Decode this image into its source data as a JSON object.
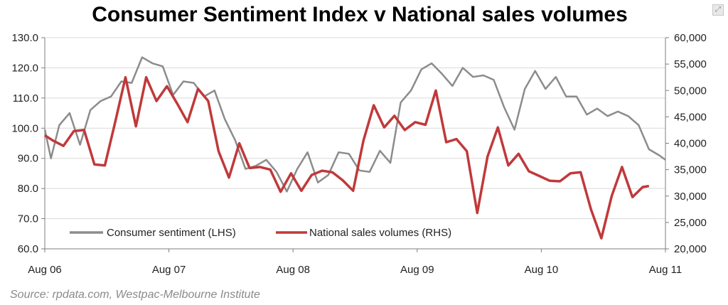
{
  "colors": {
    "sentiment": "#8c8c8c",
    "sales": "#c0393b",
    "axis": "#7f7f7f",
    "grid": "#d9d9d9",
    "source": "#8a8a8a"
  },
  "chart_data": {
    "type": "line",
    "title": "Consumer Sentiment Index v National sales volumes",
    "source": "Source:  rpdata.com, Westpac-Melbourne Institute",
    "x_range": [
      2006.583,
      2011.583
    ],
    "x_ticks": [
      {
        "label": "Aug 06",
        "t": 2006.583
      },
      {
        "label": "Aug 07",
        "t": 2007.583
      },
      {
        "label": "Aug 08",
        "t": 2008.583
      },
      {
        "label": "Aug 09",
        "t": 2009.583
      },
      {
        "label": "Aug 10",
        "t": 2010.583
      },
      {
        "label": "Aug 11",
        "t": 2011.583
      }
    ],
    "y_left": {
      "min": 60,
      "max": 130,
      "step": 10,
      "labels": [
        "60.0",
        "70.0",
        "80.0",
        "90.0",
        "100.0",
        "110.0",
        "120.0",
        "130.0"
      ]
    },
    "y_right": {
      "min": 20000,
      "max": 60000,
      "step": 5000,
      "labels": [
        "20,000",
        "25,000",
        "30,000",
        "35,000",
        "40,000",
        "45,000",
        "50,000",
        "55,000",
        "60,000"
      ]
    },
    "series": [
      {
        "name": "Consumer sentiment (LHS)",
        "axis": "left",
        "color": "#8c8c8c",
        "t": [
          2006.583,
          2006.633,
          2006.7,
          2006.783,
          2006.867,
          2006.95,
          2007.033,
          2007.117,
          2007.2,
          2007.283,
          2007.367,
          2007.45,
          2007.533,
          2007.617,
          2007.7,
          2007.783,
          2007.867,
          2007.95,
          2008.033,
          2008.117,
          2008.2,
          2008.283,
          2008.367,
          2008.45,
          2008.533,
          2008.617,
          2008.7,
          2008.783,
          2008.867,
          2008.95,
          2009.033,
          2009.117,
          2009.2,
          2009.283,
          2009.367,
          2009.45,
          2009.533,
          2009.617,
          2009.7,
          2009.783,
          2009.867,
          2009.95,
          2010.033,
          2010.117,
          2010.2,
          2010.283,
          2010.367,
          2010.45,
          2010.533,
          2010.617,
          2010.7,
          2010.783,
          2010.867,
          2010.95,
          2011.033,
          2011.117,
          2011.2,
          2011.283,
          2011.367,
          2011.45,
          2011.533,
          2011.583
        ],
        "values": [
          99.5,
          90.0,
          101.0,
          105.0,
          94.5,
          106.0,
          109.0,
          110.5,
          115.5,
          115.0,
          123.5,
          121.5,
          120.5,
          111.0,
          115.5,
          115.0,
          110.5,
          112.5,
          103.0,
          96.0,
          86.5,
          87.5,
          89.5,
          85.5,
          79.0,
          86.5,
          92.0,
          82.0,
          84.5,
          92.0,
          91.5,
          86.0,
          85.5,
          92.5,
          88.5,
          108.5,
          112.5,
          119.5,
          121.5,
          118.0,
          114.0,
          120.0,
          117.0,
          117.5,
          116.0,
          107.0,
          99.5,
          113.0,
          119.0,
          113.0,
          117.0,
          110.5,
          110.5,
          104.5,
          106.5,
          104.0,
          105.5,
          104.0,
          101.0,
          93.0,
          91.0,
          89.5
        ]
      },
      {
        "name": "National sales volumes (RHS)",
        "axis": "right",
        "color": "#c0393b",
        "t": [
          2006.583,
          2006.65,
          2006.733,
          2006.817,
          2006.9,
          2006.983,
          2007.067,
          2007.15,
          2007.233,
          2007.317,
          2007.4,
          2007.483,
          2007.567,
          2007.65,
          2007.733,
          2007.817,
          2007.9,
          2007.983,
          2008.067,
          2008.15,
          2008.233,
          2008.317,
          2008.4,
          2008.483,
          2008.567,
          2008.65,
          2008.733,
          2008.817,
          2008.9,
          2008.983,
          2009.067,
          2009.15,
          2009.233,
          2009.317,
          2009.4,
          2009.483,
          2009.567,
          2009.65,
          2009.733,
          2009.817,
          2009.9,
          2009.983,
          2010.067,
          2010.15,
          2010.233,
          2010.317,
          2010.4,
          2010.483,
          2010.567,
          2010.65,
          2010.733,
          2010.817,
          2010.9,
          2010.983,
          2011.067,
          2011.15,
          2011.233,
          2011.317,
          2011.4,
          2011.45
        ],
        "values": [
          41500,
          40500,
          39500,
          42300,
          42500,
          36000,
          35800,
          44000,
          52500,
          43200,
          52500,
          48000,
          50800,
          47500,
          44000,
          50300,
          48000,
          38500,
          33500,
          40000,
          35300,
          35500,
          35000,
          30800,
          34300,
          31000,
          34000,
          34800,
          34500,
          33000,
          31000,
          40500,
          47200,
          43000,
          45200,
          42500,
          44000,
          43500,
          50000,
          40200,
          40800,
          38500,
          26800,
          37500,
          43000,
          35800,
          38000,
          34700,
          33800,
          32900,
          32800,
          34300,
          34500,
          27500,
          22000,
          30000,
          35500,
          29800,
          31700,
          31900
        ]
      }
    ]
  }
}
